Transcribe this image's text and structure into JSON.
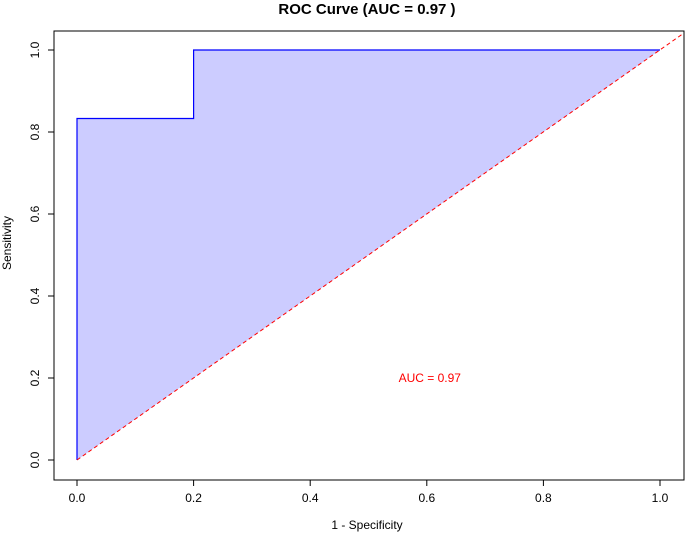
{
  "chart_data": {
    "type": "area",
    "title": "ROC Curve (AUC = 0.97 )",
    "xlabel": "1 - Specificity",
    "ylabel": "Sensitivity",
    "xlim": [
      0,
      1
    ],
    "ylim": [
      0,
      1
    ],
    "x_ticks": [
      0.0,
      0.2,
      0.4,
      0.6,
      0.8,
      1.0
    ],
    "x_tick_labels": [
      "0.0",
      "0.2",
      "0.4",
      "0.6",
      "0.8",
      "1.0"
    ],
    "y_ticks": [
      0.0,
      0.2,
      0.4,
      0.6,
      0.8,
      1.0
    ],
    "y_tick_labels": [
      "0.0",
      "0.2",
      "0.4",
      "0.6",
      "0.8",
      "1.0"
    ],
    "grid": false,
    "series": [
      {
        "x": [
          0.0,
          0.0,
          0.2,
          0.2,
          1.0
        ],
        "y": [
          0.0,
          0.833,
          0.833,
          1.0,
          1.0
        ],
        "color": "#0000ff",
        "fill": "#ccccff"
      }
    ],
    "reference_line": {
      "x": [
        0,
        1
      ],
      "y": [
        0,
        1
      ],
      "color": "#ff0000",
      "style": "dashed"
    },
    "annotations": [
      {
        "text": "AUC = 0.97",
        "x": 0.6,
        "y": 0.2,
        "color": "#ff0000"
      }
    ]
  }
}
